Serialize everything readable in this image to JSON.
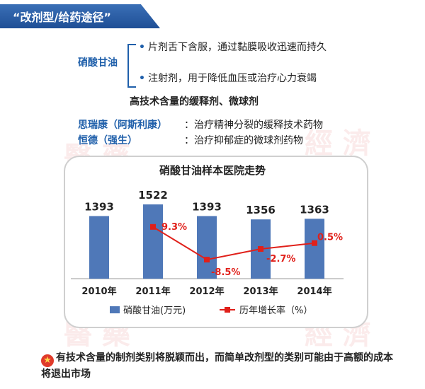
{
  "banner": {
    "title": "“改剂型/给药途径”"
  },
  "drug": {
    "name": "硝酸甘油",
    "bullets": [
      "片剂舌下含服，通过黏膜吸收迅速而持久",
      "注射剂，用于降低血压或治疗心力衰竭"
    ]
  },
  "high_tech_note": "高技术含量的缓释剂、微球剂",
  "products": [
    {
      "name": "思瑞康（阿斯利康）",
      "colon": "：",
      "desc": "治疗精神分裂的缓释技术药物"
    },
    {
      "name": "恒德（强生）",
      "colon": "：",
      "desc": "治疗抑郁症的微球剂药物"
    }
  ],
  "chart_data": {
    "type": "bar",
    "title": "硝酸甘油样本医院走势",
    "categories": [
      "2010年",
      "2011年",
      "2012年",
      "2013年",
      "2014年"
    ],
    "series": [
      {
        "name": "硝酸甘油(万元)",
        "type": "bar",
        "color": "#4f78b8",
        "values": [
          1393,
          1522,
          1393,
          1356,
          1363
        ],
        "labels": [
          "1393",
          "1522",
          "1393",
          "1356",
          "1363"
        ]
      },
      {
        "name": "历年增长率（%）",
        "type": "line",
        "color": "#e0201a",
        "values": [
          null,
          9.3,
          -8.5,
          -2.7,
          0.5
        ],
        "labels": [
          "",
          "9.3%",
          "-8.5%",
          "-2.7%",
          "0.5%"
        ]
      }
    ],
    "legend": "bottom"
  },
  "footer": {
    "icon": "star-icon",
    "text": "有技术含量的制剂类别将脱颖而出，而简单改剂型的类别可能由于高额的成本将退出市场"
  }
}
